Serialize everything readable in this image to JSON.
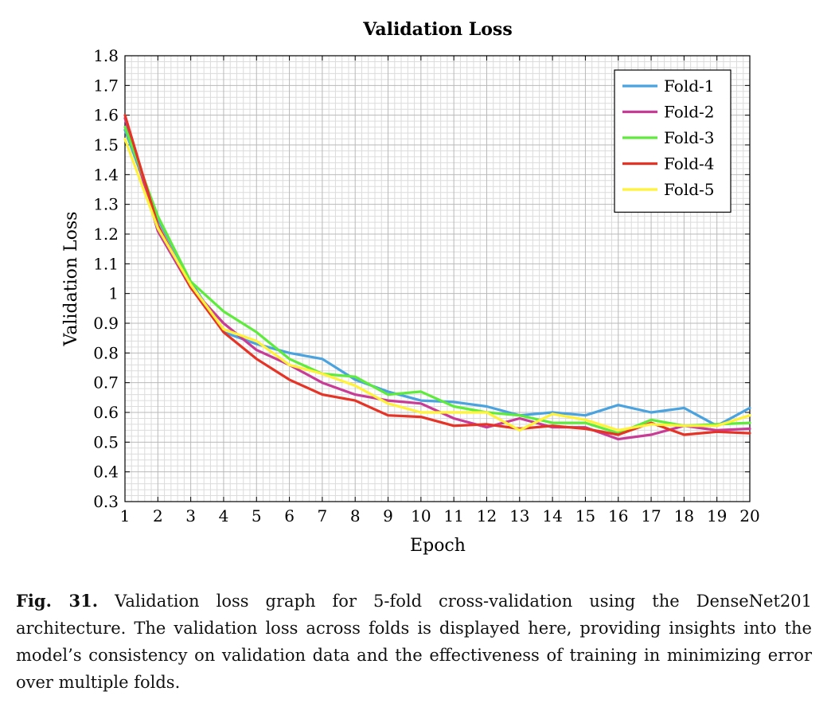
{
  "chart_data": {
    "type": "line",
    "title": "Validation Loss",
    "xlabel": "Epoch",
    "ylabel": "Validation Loss",
    "x": [
      1,
      2,
      3,
      4,
      5,
      6,
      7,
      8,
      9,
      10,
      11,
      12,
      13,
      14,
      15,
      16,
      17,
      18,
      19,
      20
    ],
    "xlim": [
      1,
      20
    ],
    "ylim": [
      0.3,
      1.8
    ],
    "yticks": [
      0.3,
      0.4,
      0.5,
      0.6,
      0.7,
      0.8,
      0.9,
      1,
      1.1,
      1.2,
      1.3,
      1.4,
      1.5,
      1.6,
      1.7,
      1.8
    ],
    "ytick_labels": [
      "0.3",
      "0.4",
      "0.5",
      "0.6",
      "0.7",
      "0.8",
      "0.9",
      "1",
      "1.1",
      "1.2",
      "1.3",
      "1.4",
      "1.5",
      "1.6",
      "1.7",
      "1.8"
    ],
    "grid": true,
    "legend_position": "top-right",
    "series": [
      {
        "name": "Fold-1",
        "color": "#4AA3DF",
        "values": [
          1.55,
          1.25,
          1.04,
          0.87,
          0.83,
          0.8,
          0.78,
          0.71,
          0.67,
          0.64,
          0.635,
          0.62,
          0.59,
          0.6,
          0.59,
          0.625,
          0.6,
          0.615,
          0.555,
          0.615
        ]
      },
      {
        "name": "Fold-2",
        "color": "#C83C96",
        "values": [
          1.59,
          1.21,
          1.02,
          0.9,
          0.81,
          0.76,
          0.7,
          0.66,
          0.64,
          0.63,
          0.58,
          0.55,
          0.58,
          0.55,
          0.55,
          0.51,
          0.525,
          0.555,
          0.54,
          0.545
        ]
      },
      {
        "name": "Fold-3",
        "color": "#5EEB3C",
        "values": [
          1.56,
          1.26,
          1.04,
          0.94,
          0.87,
          0.78,
          0.73,
          0.72,
          0.66,
          0.67,
          0.62,
          0.6,
          0.59,
          0.565,
          0.565,
          0.53,
          0.575,
          0.555,
          0.56,
          0.565
        ]
      },
      {
        "name": "Fold-4",
        "color": "#E53326",
        "values": [
          1.6,
          1.23,
          1.02,
          0.87,
          0.78,
          0.71,
          0.66,
          0.64,
          0.59,
          0.585,
          0.555,
          0.56,
          0.545,
          0.555,
          0.545,
          0.525,
          0.565,
          0.525,
          0.535,
          0.53
        ]
      },
      {
        "name": "Fold-5",
        "color": "#FFF239",
        "values": [
          1.52,
          1.22,
          1.03,
          0.88,
          0.84,
          0.76,
          0.73,
          0.69,
          0.63,
          0.6,
          0.6,
          0.6,
          0.54,
          0.595,
          0.575,
          0.54,
          0.56,
          0.555,
          0.555,
          0.59
        ]
      }
    ]
  },
  "caption": {
    "label": "Fig. 31.",
    "text": "Validation loss graph for 5-fold cross-validation using the DenseNet201 architecture. The validation loss across folds is displayed here, providing insights into the model’s consistency on validation data and the effectiveness of training in minimizing error over multiple folds."
  }
}
